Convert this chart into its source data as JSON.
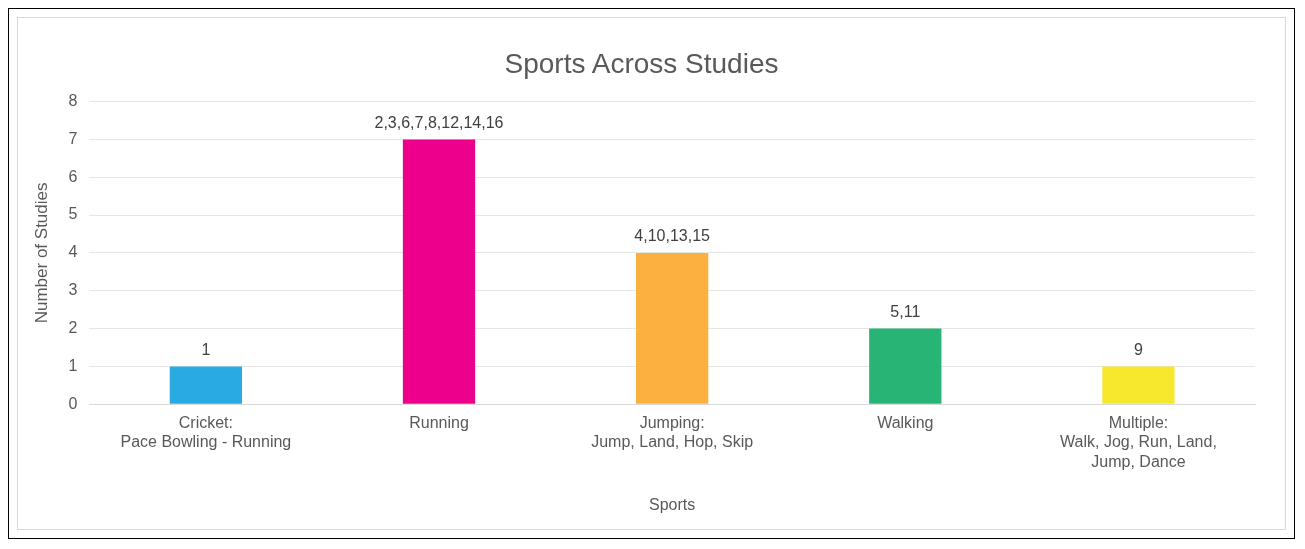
{
  "chart_data": {
    "type": "bar",
    "title": "Sports Across Studies",
    "xlabel": "Sports",
    "ylabel": "Number of Studies",
    "categories": [
      "Cricket:\nPace Bowling - Running",
      "Running",
      "Jumping:\nJump, Land, Hop, Skip",
      "Walking",
      "Multiple:\nWalk, Jog, Run, Land,\nJump, Dance"
    ],
    "values": [
      1,
      7,
      4,
      2,
      1
    ],
    "colors": [
      "#29abe2",
      "#ec008c",
      "#fbb040",
      "#27b474",
      "#f5e82d"
    ],
    "annotations": [
      {
        "text": "1",
        "x": "Cricket:\nPace Bowling - Running",
        "y": 1
      },
      {
        "text": "2,3,6,7,8,12,14,16",
        "x": "Running",
        "y": 7
      },
      {
        "text": "4,10,13,15",
        "x": "Jumping:\nJump, Land, Hop, Skip",
        "y": 4
      },
      {
        "text": "5,11",
        "x": "Walking",
        "y": 2
      },
      {
        "text": "9",
        "x": "Multiple:\nWalk, Jog, Run, Land,\nJump, Dance",
        "y": 1
      }
    ],
    "ylim": [
      0,
      8
    ],
    "yticks": [
      0,
      1,
      2,
      3,
      4,
      5,
      6,
      7,
      8
    ],
    "grid": "y",
    "legend": false
  }
}
